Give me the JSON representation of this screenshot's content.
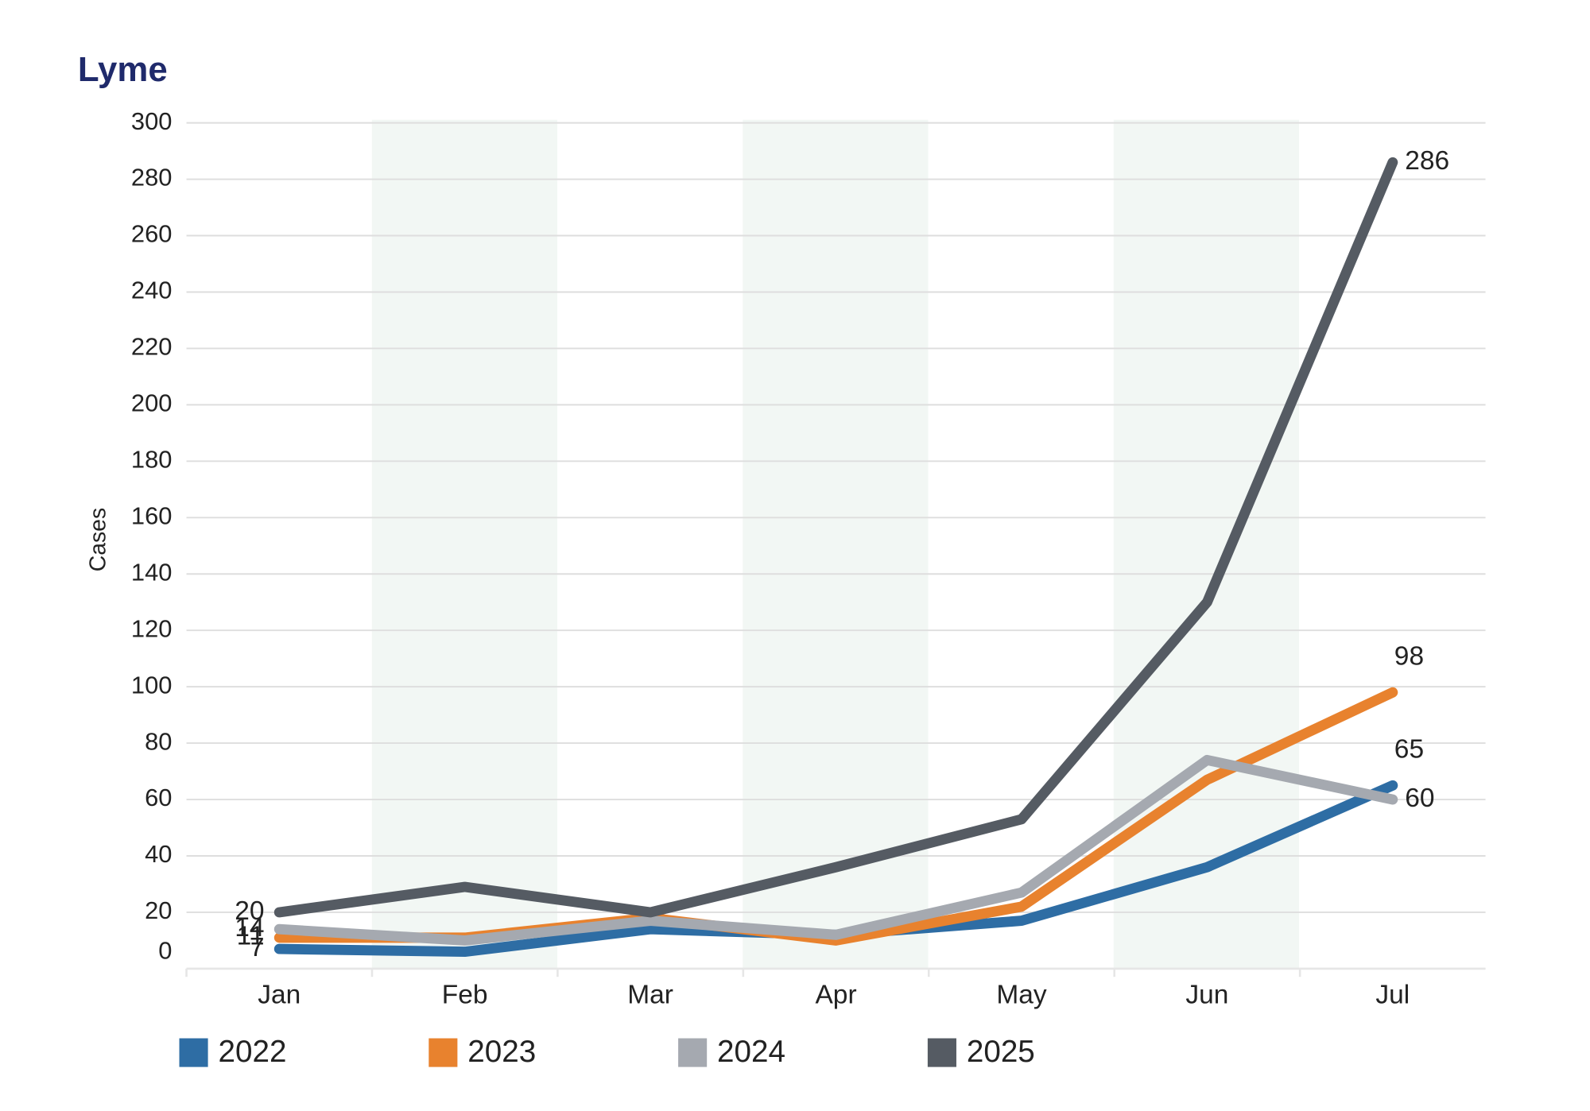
{
  "chart_data": {
    "type": "line",
    "title": "Lyme",
    "y_label": "Cases",
    "categories": [
      "Jan",
      "Feb",
      "Mar",
      "Apr",
      "May",
      "Jun",
      "Jul"
    ],
    "series": [
      {
        "name": "2022",
        "color": "#2e6da4",
        "values": [
          7,
          6,
          14,
          12,
          17,
          36,
          65
        ]
      },
      {
        "name": "2023",
        "color": "#e8822e",
        "values": [
          11,
          11,
          18,
          10,
          22,
          67,
          98
        ]
      },
      {
        "name": "2024",
        "color": "#a5a9b0",
        "values": [
          14,
          10,
          17,
          12,
          27,
          74,
          60
        ]
      },
      {
        "name": "2025",
        "color": "#555b63",
        "values": [
          20,
          29,
          20,
          36,
          53,
          130,
          286
        ]
      }
    ],
    "ylim": [
      0,
      300
    ],
    "yticks": [
      0,
      20,
      40,
      60,
      80,
      100,
      120,
      140,
      160,
      180,
      200,
      220,
      240,
      260,
      280,
      300
    ],
    "grid": true,
    "legend": "bottom"
  }
}
